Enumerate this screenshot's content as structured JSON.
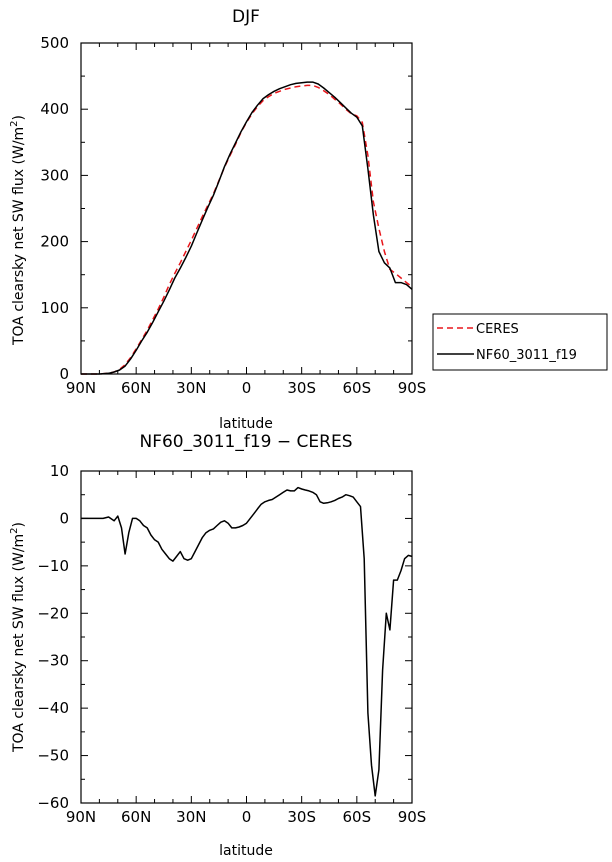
{
  "chart_data": [
    {
      "type": "line",
      "title": "DJF",
      "xlabel": "latitude",
      "ylabel": "TOA clearsky net SW flux (W/m²)",
      "xlim": [
        90,
        -90
      ],
      "ylim": [
        0,
        500
      ],
      "x_ticks": [
        90,
        60,
        30,
        0,
        -30,
        -60,
        -90
      ],
      "x_tick_labels": [
        "90N",
        "60N",
        "30N",
        "0",
        "30S",
        "60S",
        "90S"
      ],
      "y_ticks": [
        0,
        100,
        200,
        300,
        400,
        500
      ],
      "y_tick_labels": [
        "0",
        "100",
        "200",
        "300",
        "400",
        "500"
      ],
      "legend_position": "outside-right",
      "series": [
        {
          "name": "CERES",
          "color": "#e8161b",
          "dash": "dashed",
          "x": [
            90,
            85,
            80,
            75,
            72,
            69,
            66,
            63,
            60,
            57,
            54,
            51,
            48,
            45,
            42,
            39,
            36,
            33,
            30,
            27,
            24,
            21,
            18,
            15,
            12,
            9,
            6,
            3,
            0,
            -3,
            -6,
            -9,
            -12,
            -15,
            -18,
            -21,
            -24,
            -27,
            -30,
            -33,
            -36,
            -39,
            -42,
            -45,
            -48,
            -51,
            -54,
            -57,
            -60,
            -63,
            -66,
            -69,
            -72,
            -75,
            -78,
            -81,
            -84,
            -87,
            -90
          ],
          "y": [
            0,
            0,
            0,
            1,
            3,
            7,
            14,
            25,
            38,
            52,
            66,
            82,
            98,
            116,
            135,
            152,
            168,
            185,
            202,
            220,
            238,
            255,
            272,
            292,
            312,
            330,
            347,
            365,
            380,
            393,
            404,
            413,
            419,
            424,
            427,
            430,
            432,
            434,
            435,
            436,
            436,
            433,
            428,
            422,
            415,
            408,
            400,
            393,
            390,
            380,
            330,
            260,
            220,
            185,
            158,
            152,
            145,
            138,
            132
          ]
        },
        {
          "name": "NF60_3011_f19",
          "color": "#000000",
          "dash": "solid",
          "x": [
            90,
            85,
            80,
            75,
            72,
            69,
            66,
            63,
            60,
            57,
            54,
            51,
            48,
            45,
            42,
            39,
            36,
            33,
            30,
            27,
            24,
            21,
            18,
            15,
            12,
            9,
            6,
            3,
            0,
            -3,
            -6,
            -9,
            -12,
            -15,
            -18,
            -21,
            -24,
            -27,
            -30,
            -33,
            -36,
            -39,
            -42,
            -45,
            -48,
            -51,
            -54,
            -57,
            -60,
            -63,
            -66,
            -69,
            -72,
            -75,
            -78,
            -81,
            -84,
            -87,
            -90
          ],
          "y": [
            0,
            0,
            0,
            1,
            3,
            6,
            12,
            23,
            36,
            50,
            63,
            78,
            94,
            110,
            127,
            145,
            160,
            176,
            193,
            213,
            233,
            252,
            270,
            291,
            313,
            332,
            349,
            366,
            381,
            395,
            406,
            416,
            422,
            427,
            431,
            434,
            437,
            439,
            440,
            441,
            441,
            438,
            432,
            425,
            418,
            410,
            402,
            394,
            388,
            375,
            310,
            240,
            185,
            168,
            160,
            138,
            138,
            135,
            128
          ]
        }
      ]
    },
    {
      "type": "line",
      "title": "NF60_3011_f19 − CERES",
      "xlabel": "latitude",
      "ylabel": "TOA clearsky net SW flux (W/m²)",
      "xlim": [
        90,
        -90
      ],
      "ylim": [
        -60,
        10
      ],
      "x_ticks": [
        90,
        60,
        30,
        0,
        -30,
        -60,
        -90
      ],
      "x_tick_labels": [
        "90N",
        "60N",
        "30N",
        "0",
        "30S",
        "60S",
        "90S"
      ],
      "y_ticks": [
        10,
        0,
        -10,
        -20,
        -30,
        -40,
        -50,
        -60
      ],
      "y_tick_labels": [
        "10",
        "0",
        "−10",
        "−20",
        "−30",
        "−40",
        "−50",
        "−60"
      ],
      "series": [
        {
          "name": "",
          "color": "#000000",
          "dash": "solid",
          "x": [
            90,
            84,
            78,
            75,
            72,
            70,
            68,
            66,
            64,
            62,
            60,
            58,
            56,
            54,
            52,
            50,
            48,
            46,
            44,
            42,
            40,
            38,
            36,
            34,
            32,
            30,
            28,
            26,
            24,
            22,
            20,
            18,
            16,
            14,
            12,
            10,
            8,
            6,
            4,
            2,
            0,
            -2,
            -4,
            -6,
            -8,
            -10,
            -12,
            -14,
            -16,
            -18,
            -20,
            -22,
            -24,
            -26,
            -28,
            -30,
            -32,
            -34,
            -36,
            -38,
            -40,
            -42,
            -44,
            -46,
            -48,
            -50,
            -52,
            -54,
            -56,
            -58,
            -60,
            -62,
            -64,
            -66,
            -68,
            -70,
            -72,
            -74,
            -76,
            -78,
            -80,
            -82,
            -84,
            -86,
            -88,
            -90
          ],
          "y": [
            0,
            0,
            0,
            0.3,
            -0.5,
            0.5,
            -2,
            -7.5,
            -3,
            0,
            0,
            -0.5,
            -1.5,
            -2,
            -3.5,
            -4.5,
            -5,
            -6.5,
            -7.5,
            -8.5,
            -9,
            -8,
            -7,
            -8.5,
            -8.8,
            -8.5,
            -7,
            -5.5,
            -4,
            -3,
            -2.5,
            -2.2,
            -1.5,
            -0.8,
            -0.5,
            -1,
            -2,
            -2,
            -1.8,
            -1.5,
            -1,
            0,
            1,
            2,
            3,
            3.5,
            3.8,
            4,
            4.5,
            5,
            5.5,
            6,
            5.8,
            5.8,
            6.5,
            6.2,
            6,
            5.8,
            5.5,
            5,
            3.5,
            3.2,
            3.3,
            3.5,
            3.8,
            4.2,
            4.5,
            5,
            4.8,
            4.5,
            3.5,
            2.5,
            -8.5,
            -41,
            -52,
            -58.5,
            -53,
            -32,
            -20,
            -23.5,
            -13,
            -13,
            -11,
            -8.5,
            -7.8,
            -8
          ]
        }
      ]
    }
  ]
}
